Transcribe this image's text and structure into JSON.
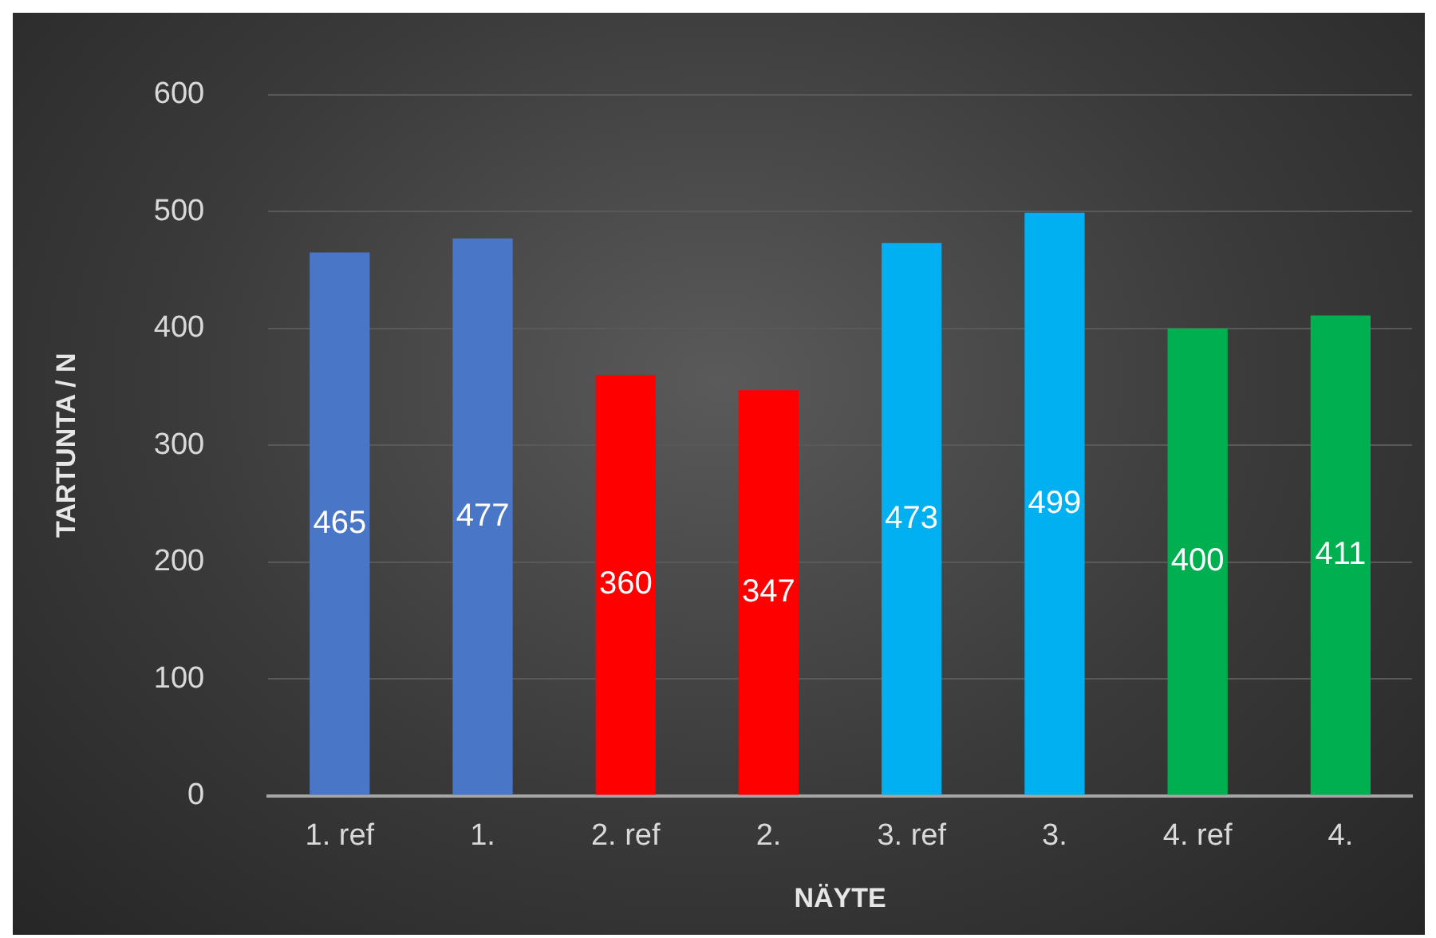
{
  "chart_data": {
    "type": "bar",
    "xlabel": "NÄYTE",
    "ylabel": "TARTUNTA / N",
    "categories": [
      "1. ref",
      "1.",
      "2. ref",
      "2.",
      "3. ref",
      "3.",
      "4. ref",
      "4."
    ],
    "values": [
      465,
      477,
      360,
      347,
      473,
      499,
      400,
      411
    ],
    "colors": [
      "#4a76c8",
      "#4a76c8",
      "#ff0000",
      "#ff0000",
      "#00b0f0",
      "#00b0f0",
      "#00b050",
      "#00b050"
    ],
    "ylim": [
      0,
      600
    ],
    "yticks": [
      0,
      100,
      200,
      300,
      400,
      500,
      600
    ],
    "grid": "y",
    "legend": false,
    "data_labels": true
  }
}
